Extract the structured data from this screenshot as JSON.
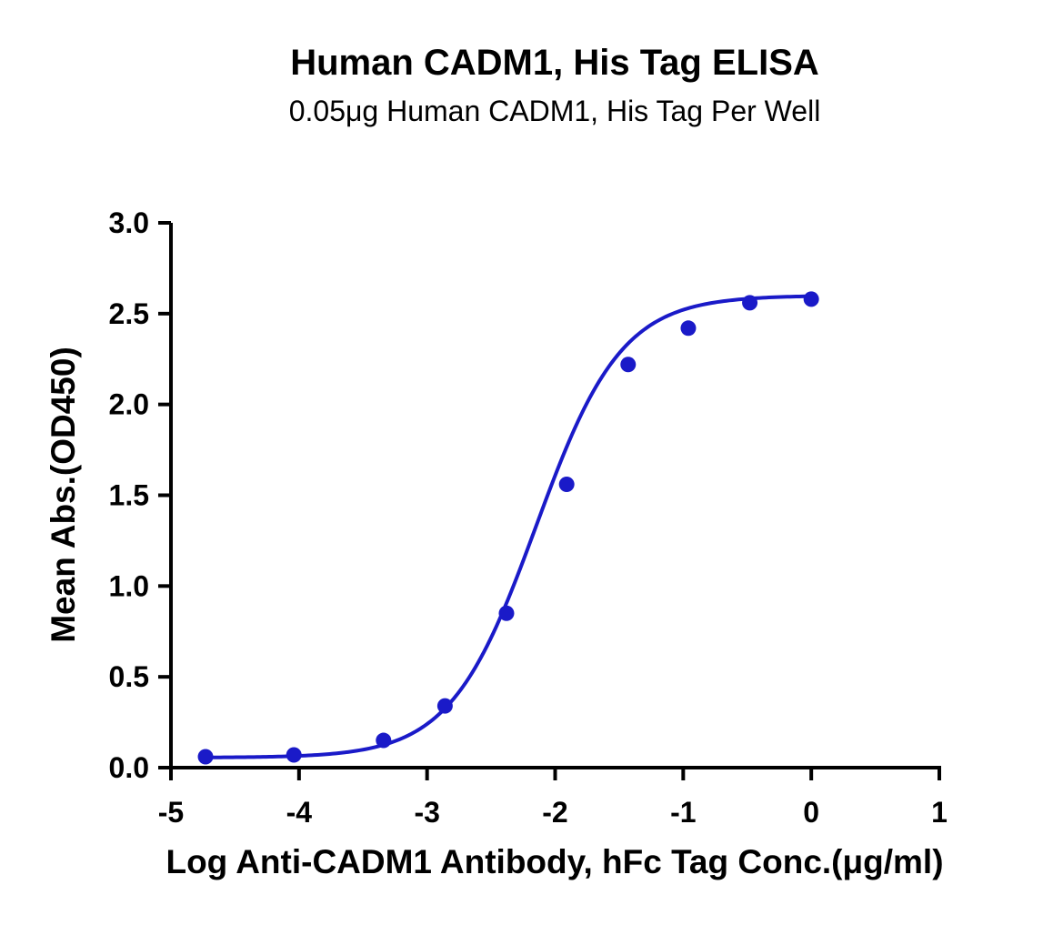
{
  "chart_data": {
    "type": "scatter",
    "title": "Human CADM1, His Tag ELISA",
    "subtitle": "0.05μg Human CADM1, His Tag Per Well",
    "xlabel": "Log Anti-CADM1 Antibody, hFc Tag Conc.(μg/ml)",
    "ylabel": "Mean Abs.(OD450)",
    "xlim": [
      -5,
      1
    ],
    "ylim": [
      0,
      3.0
    ],
    "x_ticks": [
      -5,
      -4,
      -3,
      -2,
      -1,
      0,
      1
    ],
    "x_tick_labels": [
      "-5",
      "-4",
      "-3",
      "-2",
      "-1",
      "0",
      "1"
    ],
    "y_ticks": [
      0,
      0.5,
      1.0,
      1.5,
      2.0,
      2.5,
      3.0
    ],
    "y_tick_labels": [
      "0.0",
      "0.5",
      "1.0",
      "1.5",
      "2.0",
      "2.5",
      "3.0"
    ],
    "series": [
      {
        "color": "#1a1ac8",
        "x": [
          -4.73,
          -4.04,
          -3.34,
          -2.86,
          -2.38,
          -1.91,
          -1.43,
          -0.96,
          -0.48,
          0.0
        ],
        "y": [
          0.06,
          0.07,
          0.15,
          0.34,
          0.85,
          1.56,
          2.22,
          2.42,
          2.56,
          2.58
        ]
      }
    ],
    "fit_curve": {
      "model": "4PL",
      "bottom": 0.055,
      "top": 2.6,
      "logEC50": -2.15,
      "hill": 1.3
    },
    "grid": false,
    "legend": "none"
  }
}
